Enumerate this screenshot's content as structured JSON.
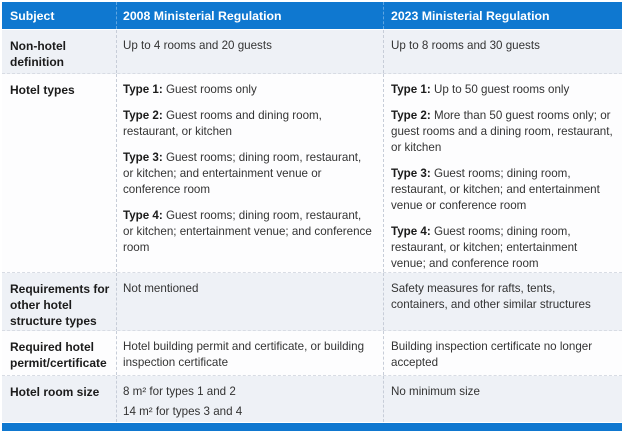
{
  "colors": {
    "header_bg": "#0f78d0",
    "accent_bar": "#0f78d0",
    "row_alt_bg": "#eef1f6",
    "row_white_bg": "#fdfdfe",
    "header_text": "#ffffff",
    "subject_text": "#1b1b1b",
    "body_text": "#333333",
    "divider_body": "#c7cdd8",
    "divider_header": "#5ea6e2"
  },
  "chart_data": {
    "type": "table",
    "title": "",
    "columns": [
      "Subject",
      "2008 Ministerial Regulation",
      "2023 Ministerial Regulation"
    ],
    "rows": [
      [
        "Non-hotel definition",
        "Up to 4 rooms and 20 guests",
        "Up to 8 rooms and 30 guests"
      ],
      [
        "Hotel types",
        "Type 1: Guest rooms only | Type 2: Guest rooms and dining room, restaurant, or kitchen | Type 3: Guest rooms; dining room, restaurant, or kitchen; and entertainment venue or conference room | Type 4: Guest rooms; dining room, restaurant, or kitchen; entertainment venue; and conference room",
        "Type 1: Up to 50 guest rooms only | Type 2: More than 50 guest rooms only; or guest rooms and a dining room, restaurant, or kitchen | Type 3: Guest rooms; dining room, restaurant, or kitchen; and entertainment venue or conference room | Type 4: Guest rooms; dining room, restaurant, or kitchen; entertainment venue; and conference room"
      ],
      [
        "Requirements for other hotel structure types",
        "Not mentioned",
        "Safety measures for rafts, tents, containers, and other similar structures"
      ],
      [
        "Required hotel permit/certificate",
        "Hotel building permit and certificate, or building inspection certificate",
        "Building inspection certificate no longer accepted"
      ],
      [
        "Hotel room size",
        "8 m² for types 1 and 2 | 14 m² for types 3 and 4",
        "No minimum size"
      ]
    ]
  },
  "table": {
    "headers": [
      "Subject",
      "2008 Ministerial Regulation",
      "2023 Ministerial Regulation"
    ],
    "rows": [
      {
        "subject": "Non-hotel definition",
        "col2008": [
          {
            "text": "Up to 4 rooms and 20 guests"
          }
        ],
        "col2023": [
          {
            "text": "Up to 8 rooms and 30 guests"
          }
        ]
      },
      {
        "subject": "Hotel types",
        "col2008": [
          {
            "label": "Type 1",
            "text": "Guest rooms only"
          },
          {
            "label": "Type 2",
            "text": "Guest rooms and dining room, restaurant, or kitchen"
          },
          {
            "label": "Type 3",
            "text": "Guest rooms; dining room, restaurant, or kitchen; and entertainment venue or conference room"
          },
          {
            "label": "Type 4",
            "text": "Guest rooms; dining room, restaurant, or kitchen; entertainment venue; and conference room"
          }
        ],
        "col2023": [
          {
            "label": "Type 1",
            "text": "Up to 50 guest rooms only"
          },
          {
            "label": "Type 2",
            "text": "More than 50 guest rooms only; or guest rooms and a dining room, restaurant, or kitchen"
          },
          {
            "label": "Type 3",
            "text": "Guest rooms; dining room, restaurant, or kitchen; and entertainment venue or conference room"
          },
          {
            "label": "Type 4",
            "text": "Guest rooms; dining room, restaurant, or kitchen; entertainment venue; and conference room"
          }
        ]
      },
      {
        "subject": "Requirements for other hotel structure types",
        "col2008": [
          {
            "text": "Not mentioned"
          }
        ],
        "col2023": [
          {
            "text": "Safety measures for rafts, tents, containers, and other similar structures"
          }
        ]
      },
      {
        "subject": "Required hotel permit/certificate",
        "col2008": [
          {
            "text": "Hotel building permit and certificate, or building inspection certificate"
          }
        ],
        "col2023": [
          {
            "text": "Building inspection certificate no longer accepted"
          }
        ]
      },
      {
        "subject": "Hotel room size",
        "col2008": [
          {
            "text": "8 m² for types 1 and 2"
          },
          {
            "text": "14 m² for types 3 and 4"
          }
        ],
        "col2023": [
          {
            "text": "No minimum size"
          }
        ]
      }
    ]
  }
}
